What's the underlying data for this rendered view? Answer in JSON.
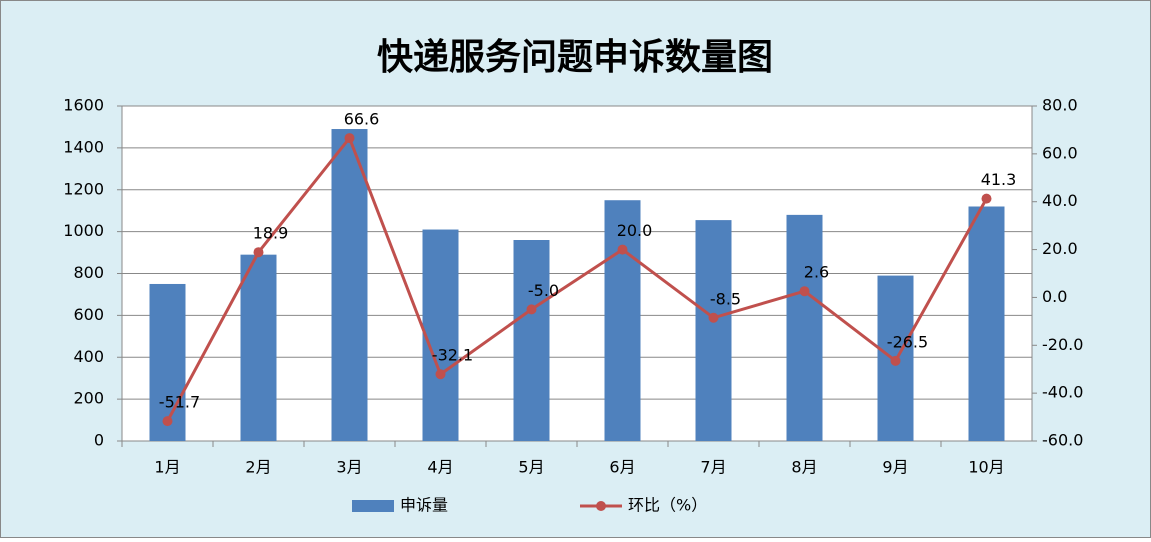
{
  "chart_data": {
    "type": "bar",
    "title": "快递服务问题申诉数量图",
    "categories": [
      "1月",
      "2月",
      "3月",
      "4月",
      "5月",
      "6月",
      "7月",
      "8月",
      "9月",
      "10月"
    ],
    "series": [
      {
        "name": "申诉量",
        "type": "bar",
        "color": "#4f81bd",
        "values": [
          750,
          890,
          1490,
          1010,
          960,
          1150,
          1055,
          1080,
          790,
          1120
        ]
      },
      {
        "name": "环比（%）",
        "type": "line",
        "axis": "y2",
        "color": "#c0504d",
        "values": [
          -51.7,
          18.9,
          66.6,
          -32.1,
          -5.0,
          20.0,
          -8.5,
          2.6,
          -26.5,
          41.3
        ],
        "value_labels": [
          "-51.7",
          "18.9",
          "66.6",
          "-32.1",
          "-5.0",
          "20.0",
          "-8.5",
          "2.6",
          "-26.5",
          "41.3"
        ]
      }
    ],
    "ylim": [
      0,
      1600
    ],
    "yticks": [
      0,
      200,
      400,
      600,
      800,
      1000,
      1200,
      1400,
      1600
    ],
    "y2lim": [
      -60,
      80
    ],
    "y2ticks": [
      {
        "value": -60,
        "label": "-60.0"
      },
      {
        "value": -40,
        "label": "-40.0"
      },
      {
        "value": -20,
        "label": "-20.0"
      },
      {
        "value": 0,
        "label": "0.0"
      },
      {
        "value": 20,
        "label": "20.0"
      },
      {
        "value": 40,
        "label": "40.0"
      },
      {
        "value": 60,
        "label": "60.0"
      },
      {
        "value": 80,
        "label": "80.0"
      }
    ],
    "grid": true,
    "legend": "bottom"
  }
}
